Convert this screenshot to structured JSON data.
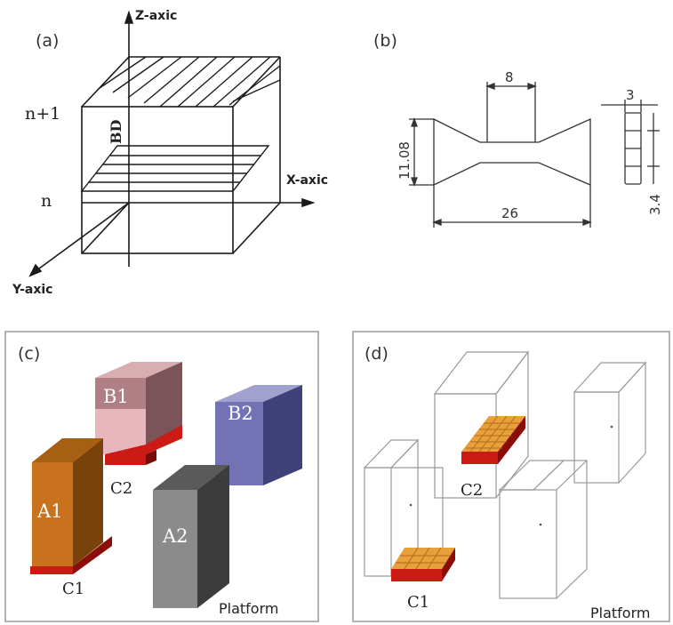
{
  "panels": {
    "a": {
      "label": "(a)",
      "z_axis": "Z-axic",
      "x_axis": "X-axic",
      "y_axis": "Y-axic",
      "layer_top": "n+1",
      "layer_bottom": "n",
      "build_dir": "BD"
    },
    "b": {
      "label": "(b)",
      "dim_gauge": "8",
      "dim_height": "11.08",
      "dim_length": "26",
      "dim_thickness": "3",
      "dim_side": "3.4"
    },
    "c": {
      "label": "(c)",
      "blocks": {
        "b1": "B1",
        "b2": "B2",
        "a1": "A1",
        "a2": "A2"
      },
      "supports": {
        "c1": "C1",
        "c2": "C2"
      },
      "platform": "Platform"
    },
    "d": {
      "label": "(d)",
      "supports": {
        "c1": "C1",
        "c2": "C2"
      },
      "platform": "Platform"
    }
  },
  "colors": {
    "line": "#1a1a1a",
    "a1": "#c8721e",
    "a2": "#7d7d7d",
    "b1": "#b07f86",
    "b2": "#7272b4",
    "support_red": "#cc1a14",
    "support_orange": "#e8a03a",
    "wire": "#9a9a9a"
  }
}
